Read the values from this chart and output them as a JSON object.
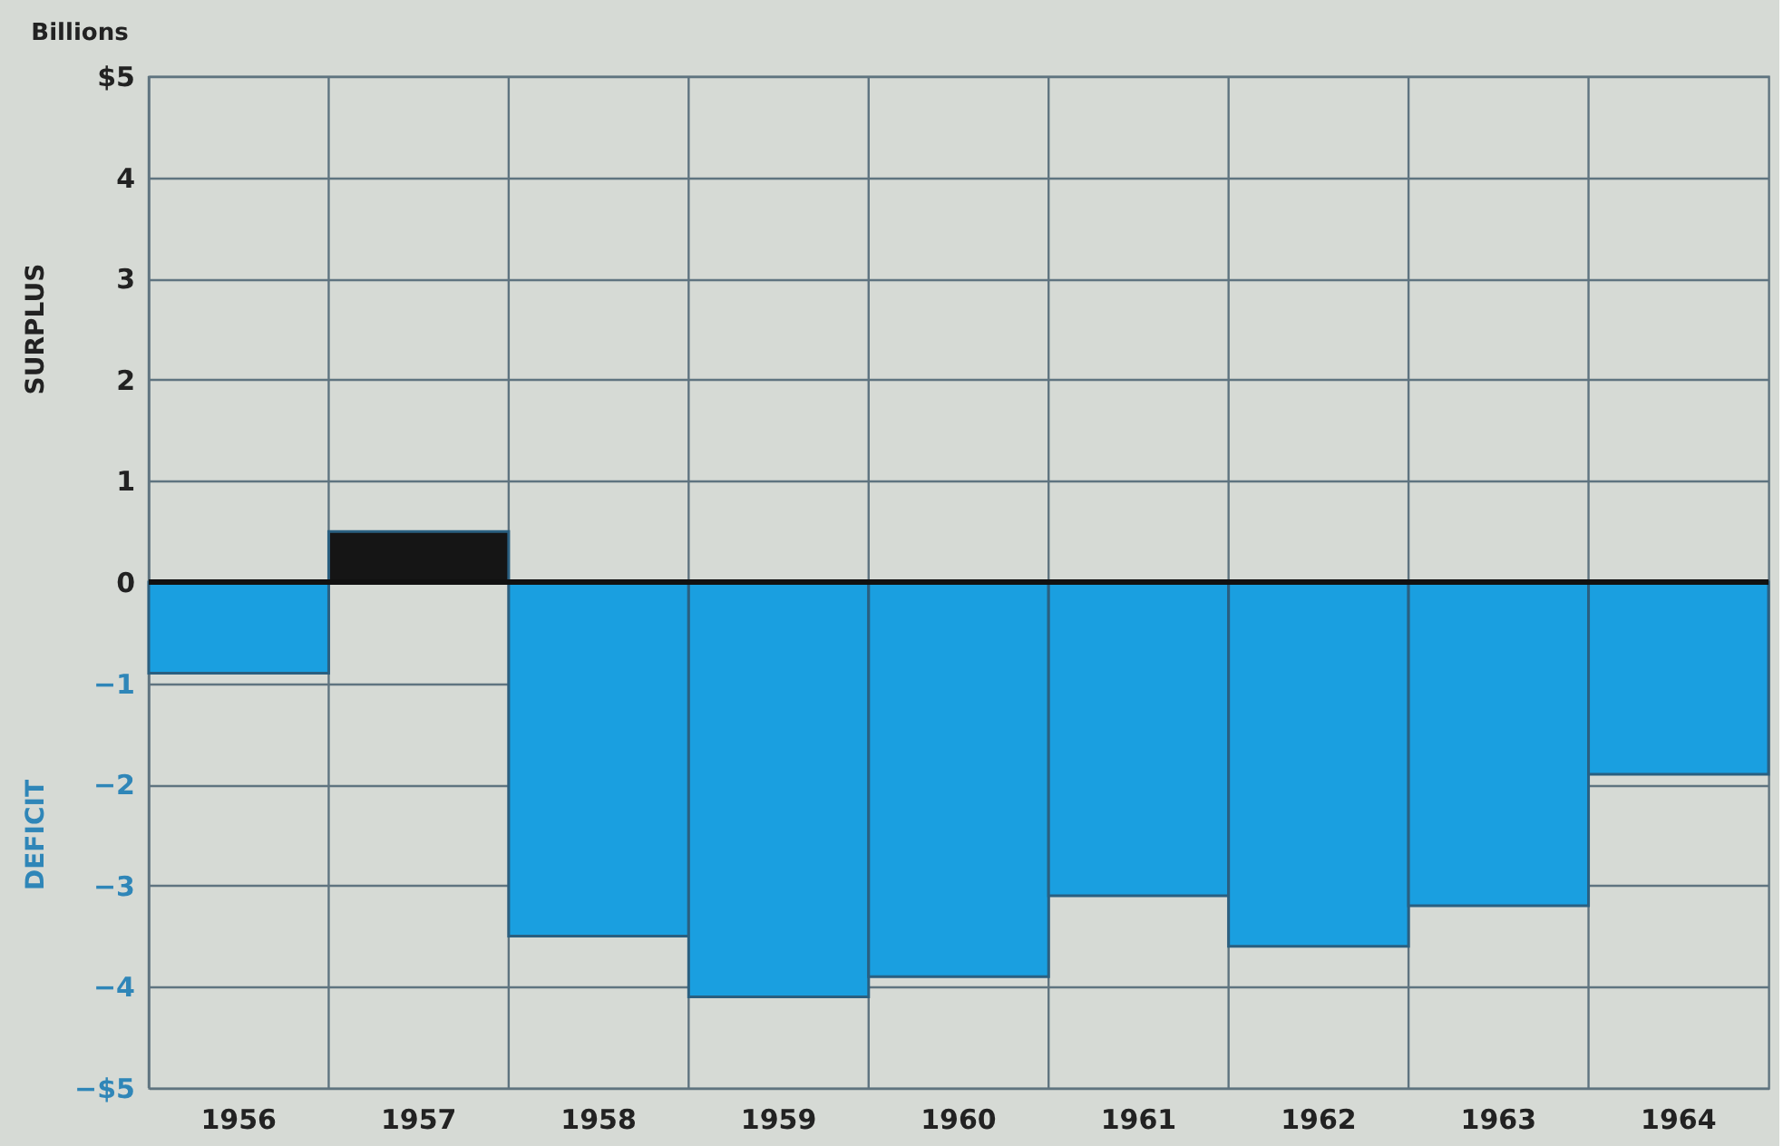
{
  "chart_data": {
    "type": "bar",
    "categories": [
      "1956",
      "1957",
      "1958",
      "1959",
      "1960",
      "1961",
      "1962",
      "1963",
      "1964"
    ],
    "values": [
      -0.9,
      0.5,
      -3.5,
      -4.1,
      -3.9,
      -3.1,
      -3.6,
      -3.2,
      -1.9
    ],
    "colors": [
      "#1a9fe0",
      "#151515",
      "#1a9fe0",
      "#1a9fe0",
      "#1a9fe0",
      "#1a9fe0",
      "#1a9fe0",
      "#1a9fe0",
      "#1a9fe0"
    ],
    "ylim": [
      -5,
      5
    ],
    "yticks": [
      {
        "value": -5,
        "label": "−$5"
      },
      {
        "value": -4,
        "label": "−4"
      },
      {
        "value": -3,
        "label": "−3"
      },
      {
        "value": -2,
        "label": "−2"
      },
      {
        "value": -1,
        "label": "−1"
      },
      0,
      1,
      2,
      3,
      4,
      {
        "value": 5,
        "label": "$5"
      }
    ],
    "annotations": [
      "Billions",
      "SURPLUS",
      "DEFICIT"
    ],
    "ref_lines": [
      {
        "axis": "y",
        "value": 0,
        "color": "#111111"
      }
    ],
    "grid": true
  }
}
